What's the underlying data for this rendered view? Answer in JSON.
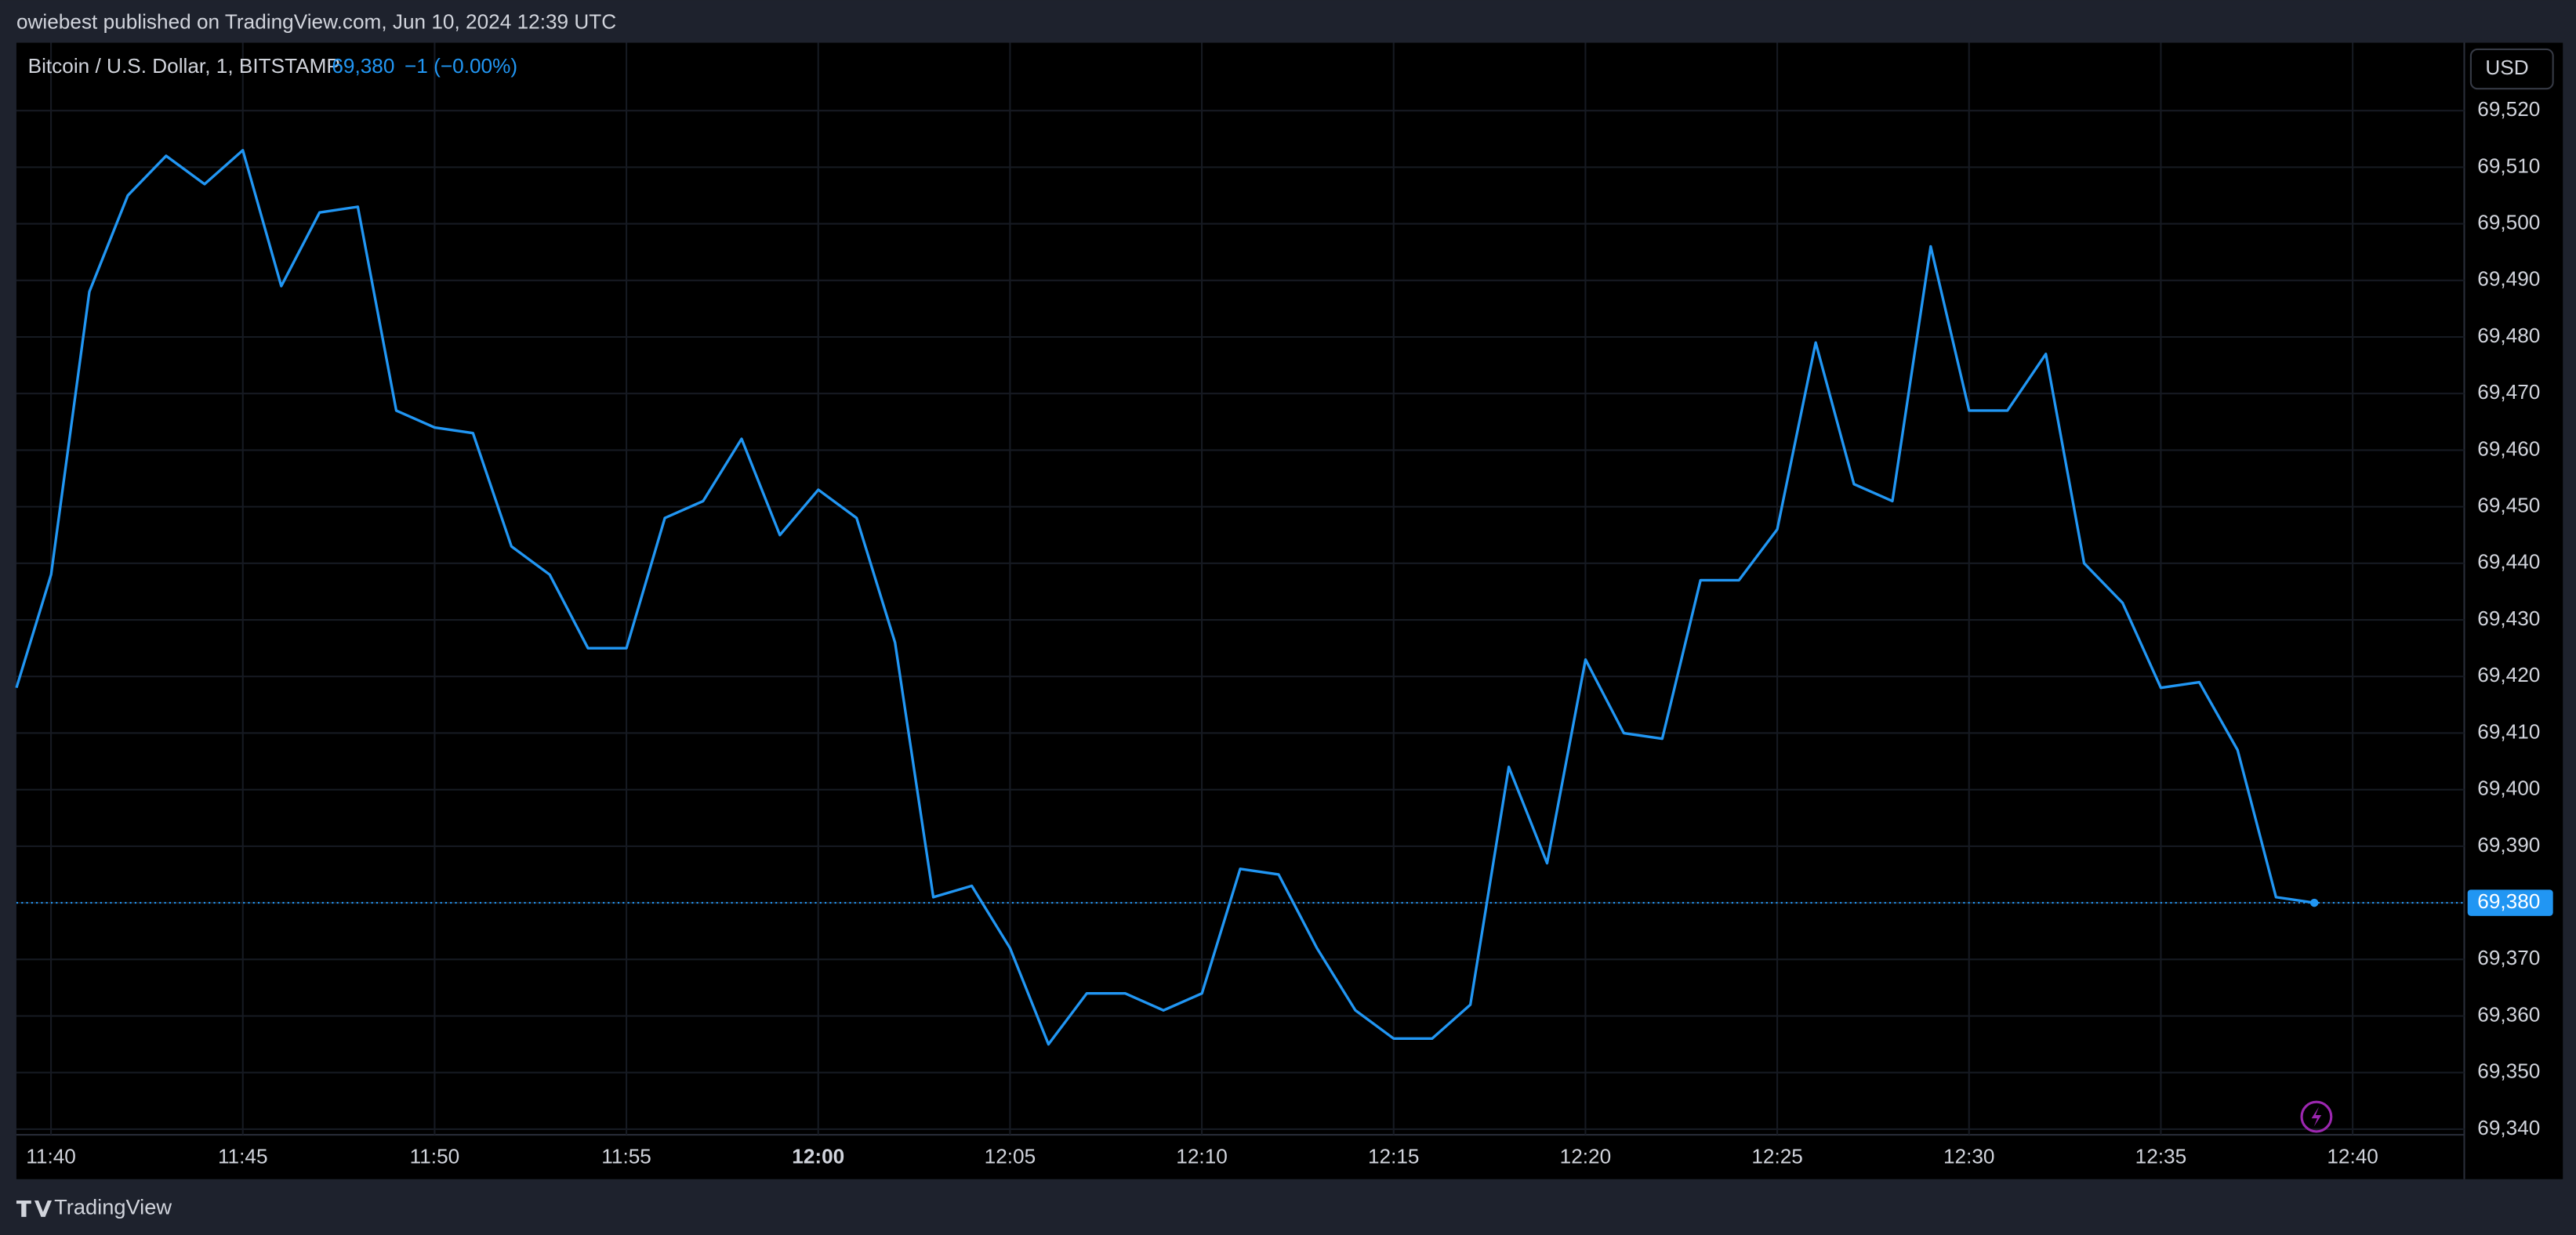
{
  "header": "owiebest published on TradingView.com, Jun 10, 2024 12:39 UTC",
  "footer": "TradingView",
  "chart_data": {
    "type": "line",
    "title": "Bitcoin / U.S. Dollar, 1, BITSTAMP",
    "last_value_label": "69,380",
    "change": "−1 (−0.00%)",
    "currency": "USD",
    "x": [
      "11:39",
      "11:40",
      "11:41",
      "11:42",
      "11:43",
      "11:44",
      "11:45",
      "11:46",
      "11:47",
      "11:48",
      "11:49",
      "11:50",
      "11:51",
      "11:52",
      "11:53",
      "11:54",
      "11:55",
      "11:56",
      "11:57",
      "11:58",
      "11:59",
      "12:00",
      "12:01",
      "12:02",
      "12:03",
      "12:04",
      "12:05",
      "12:06",
      "12:07",
      "12:08",
      "12:09",
      "12:10",
      "12:11",
      "12:12",
      "12:13",
      "12:14",
      "12:15",
      "12:16",
      "12:17",
      "12:18",
      "12:19",
      "12:20",
      "12:21",
      "12:22",
      "12:23",
      "12:24",
      "12:25",
      "12:26",
      "12:27",
      "12:28",
      "12:29",
      "12:30",
      "12:31",
      "12:32",
      "12:33",
      "12:34",
      "12:35",
      "12:36",
      "12:37",
      "12:38",
      "12:39"
    ],
    "series": [
      {
        "name": "BTCUSD",
        "color": "#2196f3",
        "values": [
          69418,
          69438,
          69488,
          69505,
          69512,
          69507,
          69513,
          69489,
          69502,
          69503,
          69467,
          69464,
          69463,
          69443,
          69438,
          69425,
          69425,
          69448,
          69451,
          69462,
          69445,
          69453,
          69448,
          69426,
          69381,
          69383,
          69372,
          69355,
          69364,
          69364,
          69361,
          69364,
          69386,
          69385,
          69372,
          69361,
          69356,
          69356,
          69362,
          69404,
          69387,
          69423,
          69410,
          69409,
          69437,
          69437,
          69446,
          69479,
          69454,
          69451,
          69496,
          69467,
          69467,
          69477,
          69440,
          69433,
          69418,
          69419,
          69407,
          69381,
          69380
        ]
      }
    ],
    "ylim": [
      69339,
      69532
    ],
    "yticks": [
      {
        "value": 69340,
        "label": "69,340"
      },
      {
        "value": 69350,
        "label": "69,350"
      },
      {
        "value": 69360,
        "label": "69,360"
      },
      {
        "value": 69370,
        "label": "69,370"
      },
      {
        "value": 69380,
        "label": "69,380"
      },
      {
        "value": 69390,
        "label": "69,390"
      },
      {
        "value": 69400,
        "label": "69,400"
      },
      {
        "value": 69410,
        "label": "69,410"
      },
      {
        "value": 69420,
        "label": "69,420"
      },
      {
        "value": 69430,
        "label": "69,430"
      },
      {
        "value": 69440,
        "label": "69,440"
      },
      {
        "value": 69450,
        "label": "69,450"
      },
      {
        "value": 69460,
        "label": "69,460"
      },
      {
        "value": 69470,
        "label": "69,470"
      },
      {
        "value": 69480,
        "label": "69,480"
      },
      {
        "value": 69490,
        "label": "69,490"
      },
      {
        "value": 69500,
        "label": "69,500"
      },
      {
        "value": 69510,
        "label": "69,510"
      },
      {
        "value": 69520,
        "label": "69,520"
      }
    ],
    "xticks": [
      "11:40",
      "11:45",
      "11:50",
      "11:55",
      "12:00",
      "12:05",
      "12:10",
      "12:15",
      "12:20",
      "12:25",
      "12:30",
      "12:35",
      "12:40"
    ],
    "grid": true
  }
}
